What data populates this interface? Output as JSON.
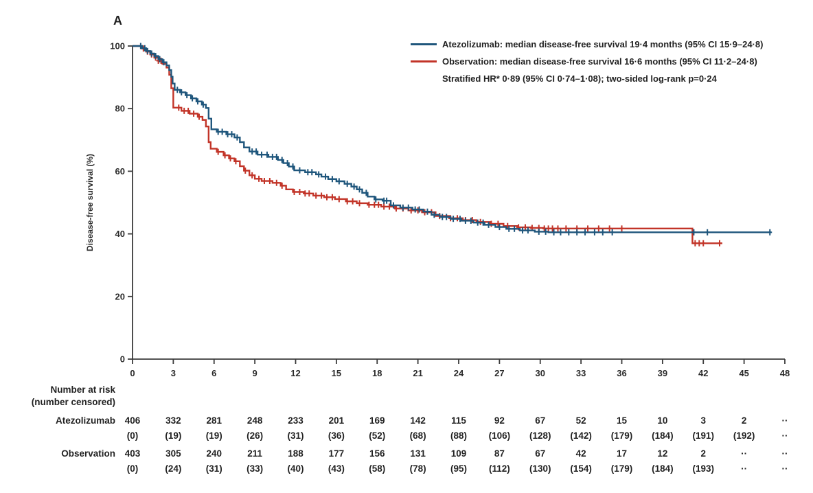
{
  "panel_label": "A",
  "colors": {
    "atezolizumab": "#1f567c",
    "observation": "#c23428",
    "axis": "#3b3b3b",
    "text": "#1f1f1f"
  },
  "legend": {
    "lines": [
      {
        "series": "atezolizumab",
        "text": "Atezolizumab: median disease-free survival 19·4 months (95% CI 15·9–24·8)"
      },
      {
        "series": "observation",
        "text": "Observation: median disease-free survival 16·6 months (95% CI 11·2–24·8)"
      },
      {
        "series": "",
        "text": "Stratified HR* 0·89 (95% CI 0·74–1·08); two-sided log-rank p=0·24"
      }
    ]
  },
  "chart_data": {
    "type": "line",
    "subtype": "kaplan-meier-step",
    "title": "",
    "xlabel": "",
    "ylabel": "Disease-free survival (%)",
    "xlim": [
      0,
      48
    ],
    "ylim": [
      0,
      100
    ],
    "xticks": [
      0,
      3,
      6,
      9,
      12,
      15,
      18,
      21,
      24,
      27,
      30,
      33,
      36,
      39,
      42,
      45,
      48
    ],
    "yticks": [
      0,
      20,
      40,
      60,
      80,
      100
    ],
    "grid": false,
    "legend_position": "top-right",
    "series": [
      {
        "name": "Atezolizumab",
        "color": "#1f567c",
        "steps": [
          [
            0,
            100
          ],
          [
            0.7,
            99.3
          ],
          [
            1.0,
            98.4
          ],
          [
            1.3,
            97.6
          ],
          [
            1.6,
            96.8
          ],
          [
            1.9,
            95.8
          ],
          [
            2.2,
            94.8
          ],
          [
            2.5,
            93.8
          ],
          [
            2.7,
            92.3
          ],
          [
            2.85,
            90.2
          ],
          [
            2.95,
            88.0
          ],
          [
            3.1,
            86.0
          ],
          [
            3.5,
            85.2
          ],
          [
            3.9,
            84.3
          ],
          [
            4.3,
            83.3
          ],
          [
            4.7,
            82.3
          ],
          [
            5.1,
            81.3
          ],
          [
            5.4,
            80.2
          ],
          [
            5.6,
            76.8
          ],
          [
            5.8,
            73.4
          ],
          [
            6.2,
            72.6
          ],
          [
            6.9,
            71.8
          ],
          [
            7.5,
            70.8
          ],
          [
            7.9,
            69.3
          ],
          [
            8.2,
            67.6
          ],
          [
            8.6,
            66.3
          ],
          [
            9.2,
            65.3
          ],
          [
            10.0,
            64.6
          ],
          [
            10.7,
            63.6
          ],
          [
            11.1,
            62.6
          ],
          [
            11.5,
            61.5
          ],
          [
            11.9,
            60.3
          ],
          [
            12.7,
            59.7
          ],
          [
            13.5,
            59.0
          ],
          [
            13.9,
            58.3
          ],
          [
            14.4,
            57.5
          ],
          [
            15.0,
            56.8
          ],
          [
            15.6,
            56.0
          ],
          [
            16.1,
            55.1
          ],
          [
            16.5,
            54.2
          ],
          [
            16.9,
            53.1
          ],
          [
            17.3,
            51.9
          ],
          [
            17.8,
            51.0
          ],
          [
            18.4,
            50.6
          ],
          [
            19.0,
            49.1
          ],
          [
            19.7,
            48.4
          ],
          [
            20.6,
            47.8
          ],
          [
            21.4,
            47.1
          ],
          [
            22.0,
            46.1
          ],
          [
            22.6,
            45.4
          ],
          [
            23.4,
            44.8
          ],
          [
            24.2,
            44.2
          ],
          [
            25.1,
            43.6
          ],
          [
            25.9,
            42.9
          ],
          [
            26.7,
            42.2
          ],
          [
            27.5,
            41.6
          ],
          [
            28.5,
            41.1
          ],
          [
            29.6,
            40.7
          ],
          [
            30.6,
            40.5
          ],
          [
            47.0,
            40.5
          ]
        ],
        "censor_times": [
          0.6,
          0.9,
          1.1,
          1.4,
          1.7,
          2.0,
          2.3,
          3.3,
          3.6,
          4.0,
          4.4,
          4.8,
          5.2,
          6.3,
          6.6,
          7.0,
          7.3,
          7.7,
          8.8,
          9.1,
          9.5,
          9.9,
          10.3,
          10.6,
          11.0,
          11.4,
          11.8,
          12.3,
          12.9,
          13.2,
          13.7,
          14.2,
          14.7,
          15.2,
          15.8,
          16.3,
          16.7,
          17.2,
          17.9,
          18.5,
          18.7,
          19.2,
          19.9,
          20.3,
          20.8,
          21.1,
          21.7,
          22.2,
          22.8,
          23.1,
          23.6,
          24.1,
          24.5,
          24.9,
          25.4,
          25.8,
          26.2,
          27.0,
          27.7,
          28.1,
          28.7,
          29.1,
          29.9,
          30.4,
          31.0,
          31.5,
          32.1,
          32.7,
          33.3,
          34.0,
          34.6,
          35.3,
          41.3,
          42.3,
          46.9
        ]
      },
      {
        "name": "Observation",
        "color": "#c23428",
        "steps": [
          [
            0,
            100
          ],
          [
            0.7,
            99.2
          ],
          [
            1.0,
            98.2
          ],
          [
            1.3,
            97.3
          ],
          [
            1.6,
            96.3
          ],
          [
            1.9,
            95.3
          ],
          [
            2.2,
            94.3
          ],
          [
            2.5,
            93.1
          ],
          [
            2.7,
            90.8
          ],
          [
            2.85,
            86.5
          ],
          [
            3.0,
            80.3
          ],
          [
            3.6,
            79.3
          ],
          [
            4.2,
            78.4
          ],
          [
            4.8,
            77.4
          ],
          [
            5.15,
            76.4
          ],
          [
            5.4,
            74.3
          ],
          [
            5.6,
            69.3
          ],
          [
            5.75,
            67.2
          ],
          [
            6.2,
            66.2
          ],
          [
            6.7,
            65.1
          ],
          [
            7.1,
            64.1
          ],
          [
            7.5,
            63.2
          ],
          [
            7.9,
            61.6
          ],
          [
            8.2,
            60.2
          ],
          [
            8.6,
            58.7
          ],
          [
            9.0,
            57.6
          ],
          [
            9.5,
            56.9
          ],
          [
            10.3,
            56.3
          ],
          [
            10.9,
            55.4
          ],
          [
            11.3,
            54.2
          ],
          [
            11.8,
            53.4
          ],
          [
            12.6,
            52.9
          ],
          [
            13.3,
            52.2
          ],
          [
            14.1,
            51.7
          ],
          [
            14.9,
            51.1
          ],
          [
            15.7,
            50.4
          ],
          [
            16.5,
            49.8
          ],
          [
            17.3,
            49.3
          ],
          [
            18.3,
            48.7
          ],
          [
            19.3,
            48.1
          ],
          [
            20.3,
            47.5
          ],
          [
            21.3,
            46.9
          ],
          [
            22.3,
            45.7
          ],
          [
            23.3,
            45.0
          ],
          [
            24.3,
            44.4
          ],
          [
            25.3,
            43.8
          ],
          [
            26.3,
            43.2
          ],
          [
            27.3,
            42.5
          ],
          [
            28.3,
            42.1
          ],
          [
            29.3,
            41.9
          ],
          [
            30.3,
            41.7
          ],
          [
            40.9,
            41.7
          ],
          [
            41.2,
            37.0
          ],
          [
            43.4,
            37.0
          ]
        ],
        "censor_times": [
          0.8,
          1.1,
          1.4,
          1.7,
          1.9,
          2.1,
          3.4,
          3.8,
          4.1,
          4.5,
          4.9,
          6.3,
          6.8,
          7.2,
          7.6,
          8.3,
          8.8,
          9.3,
          9.7,
          10.1,
          10.6,
          11.0,
          11.9,
          12.3,
          12.7,
          13.0,
          13.5,
          13.9,
          14.3,
          14.7,
          15.2,
          15.8,
          16.2,
          16.7,
          17.4,
          17.8,
          18.1,
          18.5,
          18.9,
          19.4,
          19.9,
          20.5,
          21.0,
          21.5,
          22.0,
          22.6,
          23.4,
          23.9,
          24.5,
          25.0,
          25.6,
          26.4,
          26.9,
          27.6,
          28.4,
          28.9,
          29.4,
          29.9,
          30.3,
          30.6,
          30.9,
          31.3,
          31.9,
          32.7,
          33.5,
          34.3,
          35.1,
          36.0,
          41.4,
          41.7,
          42.0,
          43.2
        ]
      }
    ]
  },
  "risk_table": {
    "header_line1": "Number at risk",
    "header_line2": "(number censored)",
    "columns": [
      0,
      3,
      6,
      9,
      12,
      15,
      18,
      21,
      24,
      27,
      30,
      33,
      36,
      39,
      42,
      45,
      48
    ],
    "rows": [
      {
        "label": "Atezolizumab",
        "n": [
          "406",
          "332",
          "281",
          "248",
          "233",
          "201",
          "169",
          "142",
          "115",
          "92",
          "67",
          "52",
          "15",
          "10",
          "3",
          "2",
          "··"
        ],
        "censored": [
          "(0)",
          "(19)",
          "(19)",
          "(26)",
          "(31)",
          "(36)",
          "(52)",
          "(68)",
          "(88)",
          "(106)",
          "(128)",
          "(142)",
          "(179)",
          "(184)",
          "(191)",
          "(192)",
          "··"
        ]
      },
      {
        "label": "Observation",
        "n": [
          "403",
          "305",
          "240",
          "211",
          "188",
          "177",
          "156",
          "131",
          "109",
          "87",
          "67",
          "42",
          "17",
          "12",
          "2",
          "··",
          "··"
        ],
        "censored": [
          "(0)",
          "(24)",
          "(31)",
          "(33)",
          "(40)",
          "(43)",
          "(58)",
          "(78)",
          "(95)",
          "(112)",
          "(130)",
          "(154)",
          "(179)",
          "(184)",
          "(193)",
          "··",
          "··"
        ]
      }
    ]
  }
}
